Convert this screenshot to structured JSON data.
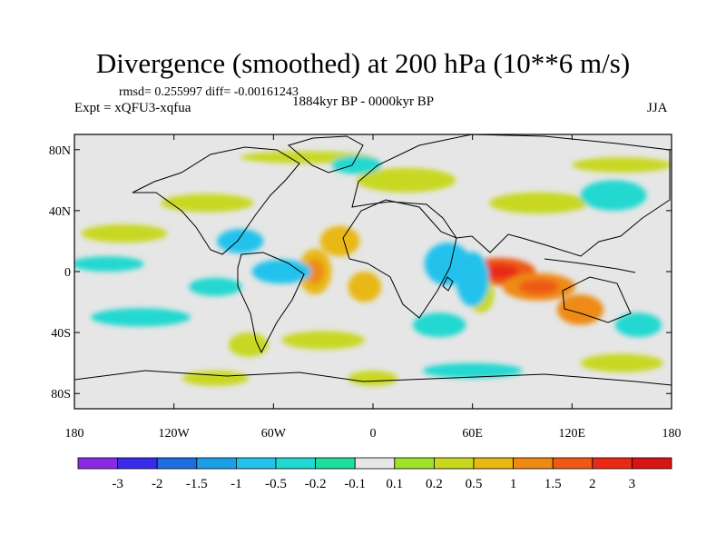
{
  "chart_data": {
    "type": "heatmap",
    "title": "Divergence (smoothed) at 200 hPa (10**6 m/s)",
    "stats_line": "rmsd= 0.255997 diff= -0.00161243",
    "experiment": "Expt = xQFU3-xqfua",
    "period": "1884kyr BP - 0000kyr BP",
    "season": "JJA",
    "x_ticks": [
      "180",
      "120W",
      "60W",
      "0",
      "60E",
      "120E",
      "180"
    ],
    "y_ticks": [
      "80N",
      "40N",
      "0",
      "40S",
      "80S"
    ],
    "xlim": [
      -180,
      180
    ],
    "ylim": [
      -90,
      90
    ],
    "colorbar": {
      "labels": [
        "-3",
        "-2",
        "-1.5",
        "-1",
        "-0.5",
        "-0.2",
        "-0.1",
        "0.1",
        "0.2",
        "0.5",
        "1",
        "1.5",
        "2",
        "3"
      ],
      "colors": [
        "#8a2be2",
        "#3a2be8",
        "#1d6fe0",
        "#1aa0e6",
        "#22c2ec",
        "#22d8d0",
        "#20dca0",
        "#e6e6e6",
        "#9ee22a",
        "#c8d820",
        "#e8b816",
        "#ee8a14",
        "#ee5a14",
        "#e82a14",
        "#d81414"
      ]
    },
    "anomaly_blobs": [
      {
        "lon": 76,
        "lat": 0,
        "rlon": 22,
        "rlat": 9,
        "value": 1.8
      },
      {
        "lon": 100,
        "lat": -10,
        "rlon": 22,
        "rlat": 9,
        "value": 1.3
      },
      {
        "lon": 125,
        "lat": -25,
        "rlon": 14,
        "rlat": 10,
        "value": 1.1
      },
      {
        "lon": 65,
        "lat": -15,
        "rlon": 8,
        "rlat": 12,
        "value": 0.4
      },
      {
        "lon": 45,
        "lat": 5,
        "rlon": 14,
        "rlat": 14,
        "value": -0.6
      },
      {
        "lon": 60,
        "lat": -5,
        "rlon": 10,
        "rlat": 18,
        "value": -0.5
      },
      {
        "lon": 40,
        "lat": -35,
        "rlon": 16,
        "rlat": 8,
        "value": -0.4
      },
      {
        "lon": -35,
        "lat": 0,
        "rlon": 10,
        "rlat": 15,
        "value": 1.0
      },
      {
        "lon": -20,
        "lat": 20,
        "rlon": 12,
        "rlat": 10,
        "value": 0.6
      },
      {
        "lon": -5,
        "lat": -10,
        "rlon": 10,
        "rlat": 10,
        "value": 0.7
      },
      {
        "lon": -55,
        "lat": 0,
        "rlon": 18,
        "rlat": 8,
        "value": -0.8
      },
      {
        "lon": -80,
        "lat": 20,
        "rlon": 14,
        "rlat": 8,
        "value": -0.5
      },
      {
        "lon": -100,
        "lat": 45,
        "rlon": 28,
        "rlat": 6,
        "value": 0.35
      },
      {
        "lon": -150,
        "lat": 25,
        "rlon": 26,
        "rlat": 6,
        "value": 0.3
      },
      {
        "lon": -160,
        "lat": 5,
        "rlon": 22,
        "rlat": 5,
        "value": -0.4
      },
      {
        "lon": -140,
        "lat": -30,
        "rlon": 30,
        "rlat": 6,
        "value": -0.4
      },
      {
        "lon": -95,
        "lat": -10,
        "rlon": 16,
        "rlat": 6,
        "value": -0.3
      },
      {
        "lon": -75,
        "lat": -48,
        "rlon": 12,
        "rlat": 8,
        "value": 0.3
      },
      {
        "lon": -95,
        "lat": -70,
        "rlon": 20,
        "rlat": 5,
        "value": 0.25
      },
      {
        "lon": 100,
        "lat": 45,
        "rlon": 30,
        "rlat": 7,
        "value": 0.4
      },
      {
        "lon": 145,
        "lat": 50,
        "rlon": 20,
        "rlat": 10,
        "value": -0.3
      },
      {
        "lon": 20,
        "lat": 60,
        "rlon": 30,
        "rlat": 8,
        "value": 0.3
      },
      {
        "lon": -40,
        "lat": 75,
        "rlon": 40,
        "rlat": 4,
        "value": 0.3
      },
      {
        "lon": 150,
        "lat": 70,
        "rlon": 30,
        "rlat": 5,
        "value": 0.3
      },
      {
        "lon": -10,
        "lat": 70,
        "rlon": 15,
        "rlat": 6,
        "value": -0.3
      },
      {
        "lon": 150,
        "lat": -60,
        "rlon": 25,
        "rlat": 6,
        "value": 0.3
      },
      {
        "lon": 60,
        "lat": -65,
        "rlon": 30,
        "rlat": 5,
        "value": -0.3
      },
      {
        "lon": 0,
        "lat": -70,
        "rlon": 15,
        "rlat": 5,
        "value": 0.25
      },
      {
        "lon": 160,
        "lat": -35,
        "rlon": 14,
        "rlat": 8,
        "value": -0.35
      },
      {
        "lon": -30,
        "lat": -45,
        "rlon": 25,
        "rlat": 6,
        "value": 0.3
      }
    ]
  }
}
